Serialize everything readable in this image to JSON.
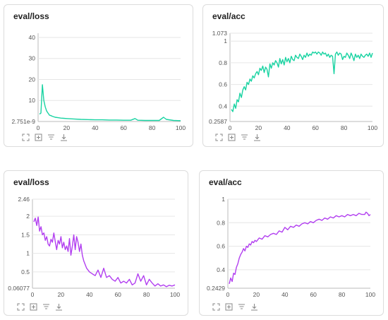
{
  "panels": [
    {
      "id": "p1",
      "title": "eval/loss",
      "color": "#19d3a2",
      "y_tick_labels": [
        "2.751e-9",
        "10",
        "20",
        "30",
        "40"
      ],
      "y_tick_values": [
        0,
        10,
        20,
        30,
        40
      ],
      "x_tick_labels": [
        "0",
        "20",
        "40",
        "60",
        "80",
        "100"
      ],
      "x_tick_values": [
        0,
        20,
        40,
        60,
        80,
        100
      ],
      "ylim": [
        0,
        42
      ],
      "xlim": [
        0,
        100
      ],
      "toolbar": [
        "expand-icon",
        "fit-icon",
        "filter-icon",
        "download-icon"
      ]
    },
    {
      "id": "p2",
      "title": "eval/acc",
      "color": "#19d3a2",
      "y_tick_labels": [
        "0.2587",
        "0.4",
        "0.6",
        "0.8",
        "1",
        "1.073"
      ],
      "y_tick_values": [
        0.2587,
        0.4,
        0.6,
        0.8,
        1,
        1.073
      ],
      "x_tick_labels": [
        "0",
        "20",
        "40",
        "60",
        "80",
        "100"
      ],
      "x_tick_values": [
        0,
        20,
        40,
        60,
        80,
        100
      ],
      "ylim": [
        0.2587,
        1.073
      ],
      "xlim": [
        0,
        100
      ],
      "toolbar": [
        "expand-icon",
        "fit-icon",
        "filter-icon",
        "download-icon"
      ]
    },
    {
      "id": "p3",
      "title": "eval/loss",
      "color": "#b23ff0",
      "y_tick_labels": [
        "0.06077",
        "0.5",
        "1",
        "1.5",
        "2",
        "2.46"
      ],
      "y_tick_values": [
        0.06077,
        0.5,
        1,
        1.5,
        2,
        2.46
      ],
      "x_tick_labels": [
        "0",
        "20",
        "40",
        "60",
        "80",
        "100"
      ],
      "x_tick_values": [
        0,
        20,
        40,
        60,
        80,
        100
      ],
      "ylim": [
        0.06077,
        2.46
      ],
      "xlim": [
        0,
        100
      ],
      "toolbar": [
        "expand-icon",
        "fit-icon",
        "filter-icon",
        "download-icon"
      ]
    },
    {
      "id": "p4",
      "title": "eval/acc",
      "color": "#b23ff0",
      "y_tick_labels": [
        "0.2429",
        "0.4",
        "0.6",
        "0.8",
        "1"
      ],
      "y_tick_values": [
        0.2429,
        0.4,
        0.6,
        0.8,
        1
      ],
      "x_tick_labels": [
        "0",
        "20",
        "40",
        "60",
        "80",
        "100"
      ],
      "x_tick_values": [
        0,
        20,
        40,
        60,
        80,
        100
      ],
      "ylim": [
        0.2429,
        1
      ],
      "xlim": [
        0,
        100
      ],
      "toolbar": [
        "expand-icon",
        "fit-icon",
        "filter-icon",
        "download-icon"
      ]
    }
  ],
  "chart_data": [
    {
      "type": "line",
      "title": "eval/loss",
      "xlim": [
        0,
        100
      ],
      "ylim": [
        0,
        42
      ],
      "grid": true,
      "series": [
        {
          "x": [
            1,
            2,
            3,
            4,
            5,
            6,
            7,
            8,
            9,
            10,
            12,
            14,
            16,
            18,
            20,
            25,
            30,
            35,
            40,
            45,
            50,
            55,
            60,
            65,
            68,
            70,
            75,
            80,
            85,
            88,
            90,
            95,
            100
          ],
          "values": [
            3.5,
            4,
            17.5,
            10,
            7,
            5,
            4,
            3,
            2.8,
            2.5,
            2,
            1.8,
            1.6,
            1.5,
            1.4,
            1.2,
            1.0,
            0.9,
            0.8,
            0.8,
            0.7,
            0.7,
            0.6,
            0.6,
            1.4,
            0.6,
            0.5,
            0.5,
            0.5,
            2.0,
            1.0,
            0.5,
            0.4
          ]
        }
      ]
    },
    {
      "type": "line",
      "title": "eval/acc",
      "xlim": [
        0,
        100
      ],
      "ylim": [
        0.2587,
        1.073
      ],
      "grid": true,
      "series": [
        {
          "x": [
            1,
            2,
            3,
            4,
            5,
            6,
            7,
            8,
            9,
            10,
            11,
            12,
            13,
            14,
            15,
            16,
            17,
            18,
            19,
            20,
            21,
            22,
            23,
            24,
            25,
            26,
            27,
            28,
            29,
            30,
            31,
            32,
            33,
            34,
            35,
            36,
            37,
            38,
            39,
            40,
            41,
            42,
            43,
            44,
            45,
            46,
            47,
            48,
            49,
            50,
            51,
            52,
            53,
            54,
            55,
            56,
            57,
            58,
            59,
            60,
            61,
            62,
            63,
            64,
            65,
            66,
            67,
            68,
            69,
            70,
            71,
            72,
            73,
            74,
            75,
            76,
            77,
            78,
            79,
            80,
            81,
            82,
            83,
            84,
            85,
            86,
            87,
            88,
            89,
            90,
            91,
            92,
            93,
            94,
            95,
            96,
            97,
            98,
            99,
            100
          ],
          "values": [
            0.37,
            0.35,
            0.42,
            0.38,
            0.46,
            0.44,
            0.52,
            0.48,
            0.55,
            0.58,
            0.55,
            0.62,
            0.6,
            0.65,
            0.63,
            0.68,
            0.66,
            0.7,
            0.72,
            0.69,
            0.75,
            0.73,
            0.77,
            0.71,
            0.76,
            0.74,
            0.67,
            0.79,
            0.75,
            0.8,
            0.78,
            0.82,
            0.8,
            0.76,
            0.84,
            0.79,
            0.83,
            0.78,
            0.85,
            0.81,
            0.84,
            0.8,
            0.86,
            0.83,
            0.82,
            0.87,
            0.85,
            0.84,
            0.88,
            0.86,
            0.83,
            0.87,
            0.85,
            0.89,
            0.86,
            0.88,
            0.87,
            0.9,
            0.89,
            0.9,
            0.88,
            0.9,
            0.89,
            0.87,
            0.9,
            0.88,
            0.89,
            0.86,
            0.88,
            0.85,
            0.87,
            0.86,
            0.7,
            0.88,
            0.9,
            0.87,
            0.89,
            0.88,
            0.83,
            0.86,
            0.85,
            0.89,
            0.87,
            0.84,
            0.89,
            0.86,
            0.82,
            0.88,
            0.85,
            0.87,
            0.84,
            0.88,
            0.86,
            0.85,
            0.87,
            0.88,
            0.86,
            0.89,
            0.85,
            0.89
          ]
        }
      ]
    },
    {
      "type": "line",
      "title": "eval/loss",
      "xlim": [
        0,
        100
      ],
      "ylim": [
        0.06077,
        2.46
      ],
      "grid": true,
      "series": [
        {
          "x": [
            1,
            2,
            3,
            4,
            5,
            6,
            7,
            8,
            9,
            10,
            11,
            12,
            13,
            14,
            15,
            16,
            17,
            18,
            19,
            20,
            21,
            22,
            23,
            24,
            25,
            26,
            27,
            28,
            29,
            30,
            31,
            32,
            33,
            34,
            35,
            36,
            37,
            38,
            39,
            40,
            42,
            44,
            46,
            48,
            50,
            52,
            54,
            56,
            58,
            60,
            62,
            64,
            66,
            68,
            70,
            72,
            74,
            76,
            78,
            80,
            82,
            84,
            86,
            88,
            90,
            92,
            94,
            96,
            98,
            100
          ],
          "values": [
            1.85,
            1.95,
            1.75,
            1.98,
            1.6,
            1.72,
            1.5,
            1.55,
            1.35,
            1.45,
            1.25,
            1.2,
            1.38,
            1.3,
            1.55,
            1.32,
            1.1,
            1.35,
            1.25,
            1.45,
            1.15,
            1.3,
            1.1,
            1.2,
            1.05,
            1.4,
            0.95,
            1.2,
            1.5,
            1.1,
            1.45,
            1.3,
            1.05,
            1.25,
            0.95,
            0.8,
            0.7,
            0.6,
            0.55,
            0.5,
            0.45,
            0.4,
            0.55,
            0.35,
            0.6,
            0.35,
            0.4,
            0.3,
            0.25,
            0.35,
            0.2,
            0.25,
            0.2,
            0.3,
            0.15,
            0.2,
            0.45,
            0.25,
            0.4,
            0.15,
            0.3,
            0.2,
            0.12,
            0.18,
            0.12,
            0.15,
            0.1,
            0.14,
            0.12,
            0.15
          ]
        }
      ]
    },
    {
      "type": "line",
      "title": "eval/acc",
      "xlim": [
        0,
        100
      ],
      "ylim": [
        0.2429,
        1
      ],
      "grid": true,
      "series": [
        {
          "x": [
            1,
            2,
            3,
            4,
            5,
            6,
            7,
            8,
            9,
            10,
            11,
            12,
            13,
            14,
            15,
            16,
            17,
            18,
            19,
            20,
            22,
            24,
            26,
            28,
            30,
            32,
            34,
            36,
            38,
            40,
            42,
            44,
            46,
            48,
            50,
            52,
            54,
            56,
            58,
            60,
            62,
            64,
            66,
            68,
            70,
            72,
            74,
            76,
            78,
            80,
            82,
            84,
            86,
            88,
            90,
            92,
            94,
            96,
            97,
            98,
            99,
            100
          ],
          "values": [
            0.28,
            0.33,
            0.3,
            0.37,
            0.36,
            0.42,
            0.45,
            0.5,
            0.53,
            0.55,
            0.58,
            0.56,
            0.6,
            0.59,
            0.62,
            0.61,
            0.64,
            0.63,
            0.65,
            0.64,
            0.67,
            0.66,
            0.69,
            0.68,
            0.7,
            0.71,
            0.7,
            0.73,
            0.72,
            0.76,
            0.74,
            0.77,
            0.76,
            0.78,
            0.77,
            0.79,
            0.8,
            0.79,
            0.81,
            0.8,
            0.82,
            0.83,
            0.82,
            0.84,
            0.83,
            0.85,
            0.84,
            0.86,
            0.85,
            0.86,
            0.85,
            0.87,
            0.86,
            0.87,
            0.86,
            0.88,
            0.87,
            0.87,
            0.89,
            0.88,
            0.86,
            0.87
          ]
        }
      ]
    }
  ]
}
